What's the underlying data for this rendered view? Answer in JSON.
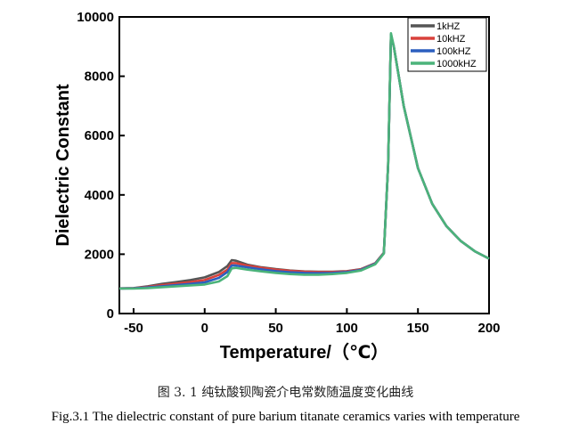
{
  "chart_data": {
    "type": "line",
    "title": "",
    "xlabel": "Temperature/（℃）",
    "ylabel": "Dielectric Constant",
    "xlim": [
      -60,
      200
    ],
    "ylim": [
      0,
      10000
    ],
    "x_ticks": [
      -50,
      0,
      50,
      100,
      150,
      200
    ],
    "y_ticks": [
      0,
      2000,
      4000,
      6000,
      8000,
      10000
    ],
    "legend_position": "top-right",
    "grid": false,
    "series": [
      {
        "name": "1kHZ",
        "color": "#555555",
        "points": [
          [
            -60,
            850
          ],
          [
            -50,
            860
          ],
          [
            -40,
            920
          ],
          [
            -30,
            1000
          ],
          [
            -20,
            1060
          ],
          [
            -10,
            1130
          ],
          [
            0,
            1220
          ],
          [
            10,
            1400
          ],
          [
            16,
            1600
          ],
          [
            19,
            1800
          ],
          [
            22,
            1780
          ],
          [
            30,
            1650
          ],
          [
            40,
            1560
          ],
          [
            50,
            1500
          ],
          [
            60,
            1450
          ],
          [
            70,
            1420
          ],
          [
            80,
            1410
          ],
          [
            90,
            1410
          ],
          [
            100,
            1430
          ],
          [
            110,
            1500
          ],
          [
            120,
            1700
          ],
          [
            126,
            2050
          ],
          [
            129,
            5000
          ],
          [
            131,
            9400
          ],
          [
            133,
            9000
          ],
          [
            140,
            7000
          ],
          [
            150,
            4900
          ],
          [
            160,
            3700
          ],
          [
            170,
            2950
          ],
          [
            180,
            2450
          ],
          [
            190,
            2100
          ],
          [
            200,
            1850
          ]
        ]
      },
      {
        "name": "10kHZ",
        "color": "#d9413b",
        "points": [
          [
            -60,
            845
          ],
          [
            -50,
            855
          ],
          [
            -40,
            900
          ],
          [
            -30,
            960
          ],
          [
            -20,
            1010
          ],
          [
            -10,
            1060
          ],
          [
            0,
            1130
          ],
          [
            10,
            1300
          ],
          [
            16,
            1480
          ],
          [
            19,
            1700
          ],
          [
            22,
            1700
          ],
          [
            30,
            1620
          ],
          [
            40,
            1540
          ],
          [
            50,
            1480
          ],
          [
            60,
            1440
          ],
          [
            70,
            1410
          ],
          [
            80,
            1400
          ],
          [
            90,
            1400
          ],
          [
            100,
            1420
          ],
          [
            110,
            1490
          ],
          [
            120,
            1690
          ],
          [
            126,
            2040
          ],
          [
            129,
            5000
          ],
          [
            131,
            9400
          ],
          [
            133,
            9000
          ],
          [
            140,
            7000
          ],
          [
            150,
            4900
          ],
          [
            160,
            3700
          ],
          [
            170,
            2950
          ],
          [
            180,
            2450
          ],
          [
            190,
            2100
          ],
          [
            200,
            1850
          ]
        ]
      },
      {
        "name": "100kHZ",
        "color": "#2c5fbf",
        "points": [
          [
            -60,
            840
          ],
          [
            -50,
            850
          ],
          [
            -40,
            880
          ],
          [
            -30,
            920
          ],
          [
            -20,
            960
          ],
          [
            -10,
            1000
          ],
          [
            0,
            1050
          ],
          [
            10,
            1200
          ],
          [
            16,
            1400
          ],
          [
            19,
            1620
          ],
          [
            22,
            1620
          ],
          [
            30,
            1560
          ],
          [
            40,
            1490
          ],
          [
            50,
            1430
          ],
          [
            60,
            1390
          ],
          [
            70,
            1370
          ],
          [
            80,
            1360
          ],
          [
            90,
            1370
          ],
          [
            100,
            1400
          ],
          [
            110,
            1470
          ],
          [
            120,
            1680
          ],
          [
            126,
            2030
          ],
          [
            129,
            5000
          ],
          [
            131,
            9400
          ],
          [
            133,
            9000
          ],
          [
            140,
            7000
          ],
          [
            150,
            4900
          ],
          [
            160,
            3700
          ],
          [
            170,
            2950
          ],
          [
            180,
            2450
          ],
          [
            190,
            2100
          ],
          [
            200,
            1850
          ]
        ]
      },
      {
        "name": "1000kHZ",
        "color": "#4bb37a",
        "points": [
          [
            -60,
            840
          ],
          [
            -50,
            840
          ],
          [
            -40,
            860
          ],
          [
            -30,
            890
          ],
          [
            -20,
            920
          ],
          [
            -10,
            950
          ],
          [
            0,
            980
          ],
          [
            10,
            1080
          ],
          [
            16,
            1260
          ],
          [
            19,
            1520
          ],
          [
            22,
            1540
          ],
          [
            30,
            1480
          ],
          [
            40,
            1420
          ],
          [
            50,
            1370
          ],
          [
            60,
            1330
          ],
          [
            70,
            1310
          ],
          [
            80,
            1310
          ],
          [
            90,
            1330
          ],
          [
            100,
            1370
          ],
          [
            110,
            1450
          ],
          [
            120,
            1660
          ],
          [
            126,
            2020
          ],
          [
            129,
            5000
          ],
          [
            131,
            9450
          ],
          [
            133,
            9000
          ],
          [
            140,
            7000
          ],
          [
            150,
            4900
          ],
          [
            160,
            3700
          ],
          [
            170,
            2950
          ],
          [
            180,
            2450
          ],
          [
            190,
            2100
          ],
          [
            200,
            1850
          ]
        ]
      }
    ]
  },
  "captions": {
    "chinese": "图 3. 1  纯钛酸钡陶瓷介电常数随温度变化曲线",
    "english": "Fig.3.1 The dielectric constant of pure barium titanate ceramics varies with temperature"
  }
}
